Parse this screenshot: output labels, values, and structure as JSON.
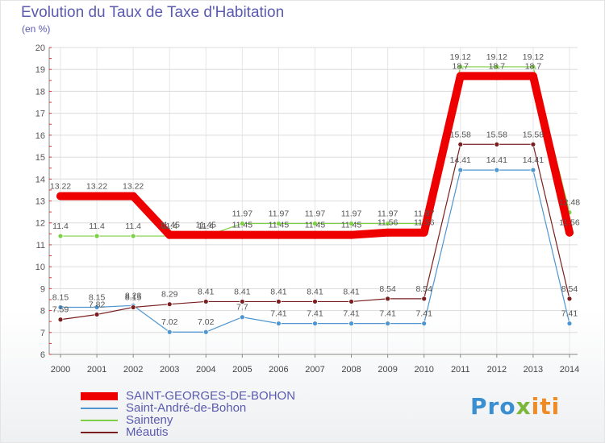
{
  "title": "Evolution du Taux de Taxe d'Habitation",
  "subtitle": "(en %)",
  "logo": {
    "part1": "Pro",
    "part2": "x",
    "part3": "iti"
  },
  "chart_data": {
    "type": "line",
    "ylim": [
      6,
      20
    ],
    "yticks": [
      "6",
      "7",
      "8",
      "9",
      "10",
      "11",
      "12",
      "13",
      "14",
      "15",
      "16",
      "17",
      "18",
      "19",
      "20"
    ],
    "categories": [
      "2000",
      "2001",
      "2002",
      "2003",
      "2004",
      "2005",
      "2006",
      "2007",
      "2008",
      "2009",
      "2010",
      "2011",
      "2012",
      "2013",
      "2014"
    ],
    "grid": true,
    "series": [
      {
        "name": "SAINT-GEORGES-DE-BOHON",
        "color": "#ee0000",
        "values": [
          13.22,
          13.22,
          13.22,
          11.45,
          11.45,
          11.45,
          11.45,
          11.45,
          11.45,
          11.56,
          11.56,
          18.7,
          18.7,
          18.7,
          11.56
        ],
        "labels": [
          "13.22",
          "13.22",
          "13.22",
          "11.45",
          "11.45",
          "11.45",
          "11.45",
          "11.45",
          "11.45",
          "11.56",
          "11.56",
          "18.7",
          "18.7",
          "18.7",
          "11.56"
        ]
      },
      {
        "name": "Saint-André-de-Bohon",
        "color": "#4f96d0",
        "values": [
          8.15,
          8.15,
          8.23,
          7.02,
          7.02,
          7.7,
          7.41,
          7.41,
          7.41,
          7.41,
          7.41,
          14.41,
          14.41,
          14.41,
          7.41
        ],
        "labels": [
          "8.15",
          "8.15",
          "8.23",
          "7.02",
          "7.02",
          "7.7",
          "7.41",
          "7.41",
          "7.41",
          "7.41",
          "7.41",
          "14.41",
          "14.41",
          "14.41",
          "7.41"
        ]
      },
      {
        "name": "Sainteny",
        "color": "#7dcf45",
        "values": [
          11.4,
          11.4,
          11.4,
          11.4,
          11.4,
          11.97,
          11.97,
          11.97,
          11.97,
          11.97,
          11.97,
          19.12,
          19.12,
          19.12,
          12.48
        ],
        "labels": [
          "11.4",
          "11.4",
          "11.4",
          "11.4",
          "11.4",
          "11.97",
          "11.97",
          "11.97",
          "11.97",
          "11.97",
          "11.97",
          "19.12",
          "19.12",
          "19.12",
          "12.48"
        ]
      },
      {
        "name": "Méautis",
        "color": "#7a1f1f",
        "values": [
          7.59,
          7.82,
          8.15,
          8.29,
          8.41,
          8.41,
          8.41,
          8.41,
          8.41,
          8.54,
          8.54,
          15.58,
          15.58,
          15.58,
          8.54
        ],
        "labels": [
          "7.59",
          "7.82",
          "8.15",
          "8.29",
          "8.41",
          "8.41",
          "8.41",
          "8.41",
          "8.41",
          "8.54",
          "8.54",
          "15.58",
          "15.58",
          "15.58",
          "8.54"
        ]
      }
    ]
  }
}
